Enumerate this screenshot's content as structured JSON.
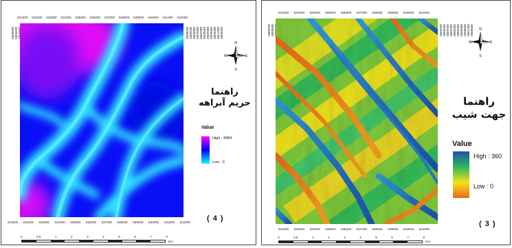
{
  "panel_4": {
    "caption": "( 4 )",
    "legend_title_line1": "راهنما",
    "legend_title_line2": "حريم آبراهه",
    "value_label": "Value",
    "high_label": "High : 4984",
    "low_label": "Low : 0",
    "ramp_colors": [
      "#ff00ff",
      "#0000ff",
      "#00ffff"
    ],
    "x_ticks": [
      "631000",
      "632000",
      "633000",
      "634000",
      "635000",
      "636000",
      "637000",
      "638000",
      "639000",
      "640000",
      "641000",
      "642000"
    ],
    "y_ticks": [
      "3858000",
      "3857000",
      "3856000",
      "3855000",
      "3854000",
      "3853000",
      "3852000",
      "3851000",
      "3850000",
      "3849000",
      "3848000"
    ],
    "scale_labels": [
      "0",
      "0.5",
      "1",
      "2",
      "3",
      "4",
      "5",
      "6",
      "7",
      "8"
    ],
    "scale_unit": "Km",
    "compass": {
      "n": "N",
      "s": "S",
      "e": "E",
      "w": "W"
    }
  },
  "panel_3": {
    "caption": "( 3 )",
    "legend_title_line1": "راهنما",
    "legend_title_line2": "جهت شيب",
    "value_label": "Value",
    "high_label": "High : 360",
    "low_label": "Low : 0",
    "ramp_colors": [
      "#1a53a8",
      "#2fb85a",
      "#f3e21a",
      "#e86a1a"
    ],
    "x_ticks": [
      "632000",
      "633000",
      "634000",
      "635000",
      "636000",
      "637000",
      "638000",
      "639000",
      "640000",
      "641000"
    ],
    "y_ticks": [
      "3858000",
      "3857000",
      "3856000",
      "3855000",
      "3854000",
      "3853000",
      "3852000",
      "3851000",
      "3850000",
      "3849000"
    ],
    "scale_labels": [
      "0",
      "0.5",
      "1",
      "2",
      "3",
      "4",
      "5",
      "6",
      "7",
      "8"
    ],
    "scale_unit": "Km",
    "compass": {
      "n": "N",
      "s": "S",
      "e": "E",
      "w": "W"
    }
  }
}
